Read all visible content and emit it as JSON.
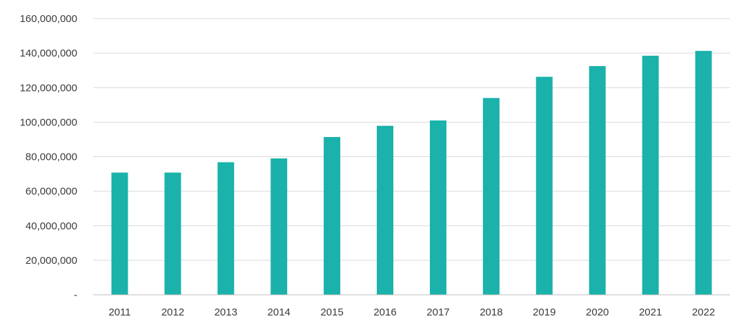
{
  "chart_data": {
    "type": "bar",
    "title": "",
    "xlabel": "",
    "ylabel": "",
    "categories": [
      "2011",
      "2012",
      "2013",
      "2014",
      "2015",
      "2016",
      "2017",
      "2018",
      "2019",
      "2020",
      "2021",
      "2022"
    ],
    "values": [
      70800000,
      70800000,
      76800000,
      79000000,
      91400000,
      97900000,
      101000000,
      114000000,
      126300000,
      132500000,
      138500000,
      141300000
    ],
    "ylim": [
      0,
      160000000
    ],
    "yticks": [
      0,
      20000000,
      40000000,
      60000000,
      80000000,
      100000000,
      120000000,
      140000000,
      160000000
    ],
    "ytick_labels": [
      "-",
      "20,000,000",
      "40,000,000",
      "60,000,000",
      "80,000,000",
      "100,000,000",
      "120,000,000",
      "140,000,000",
      "160,000,000"
    ],
    "grid": true,
    "legend": "none",
    "bar_color": "#1ab2aa"
  }
}
